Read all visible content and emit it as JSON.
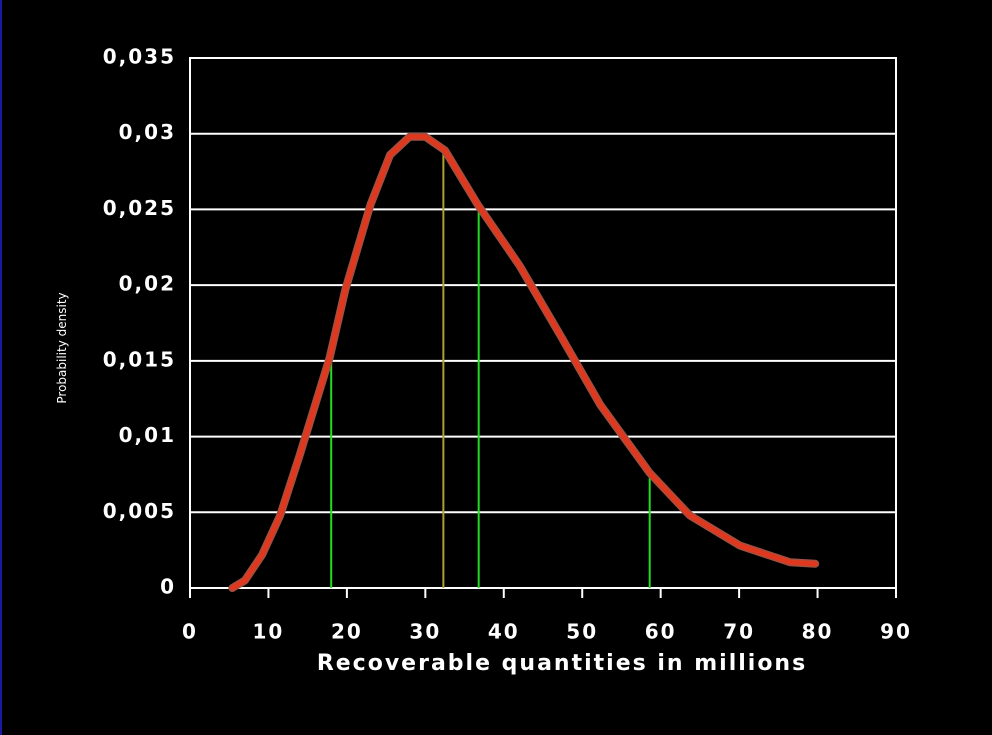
{
  "chart_data": {
    "type": "line",
    "x_label": "Recoverable quantities in millions",
    "y_label": "Probability density",
    "xlim": [
      0,
      90
    ],
    "xticks": [
      0,
      10,
      20,
      30,
      40,
      50,
      60,
      70,
      80,
      90
    ],
    "ylim": [
      0,
      0.035
    ],
    "yticks": [
      0,
      {
        "value": 0.005,
        "label": "0,005"
      },
      {
        "value": 0.01,
        "label": "0,01"
      },
      {
        "value": 0.015,
        "label": "0,015"
      },
      {
        "value": 0.02,
        "label": "0,02"
      },
      {
        "value": 0.025,
        "label": "0,025"
      },
      {
        "value": 0.03,
        "label": "0,03"
      },
      {
        "value": 0.035,
        "label": "0,035"
      }
    ],
    "grid": true,
    "series": [
      {
        "color": "#e0381e",
        "x": [
          5.4,
          7,
          9.2,
          11.5,
          14,
          17.8,
          19.8,
          23,
          25.5,
          28,
          30,
          32.5,
          36.7,
          42,
          47.2,
          52.3,
          58.6,
          63.7,
          70.1,
          76.5,
          79.7
        ],
        "values": [
          0,
          0.0005,
          0.0022,
          0.0048,
          0.0088,
          0.0152,
          0.0197,
          0.0253,
          0.0286,
          0.0298,
          0.0298,
          0.0289,
          0.0253,
          0.0213,
          0.0167,
          0.0121,
          0.0076,
          0.0048,
          0.0028,
          0.0017,
          0.0016
        ]
      }
    ],
    "reference_lines": [
      {
        "x": 18,
        "y": 0.015,
        "color": "#22dd22"
      },
      {
        "x": 32.3,
        "y": 0.029,
        "color": "#b0a030"
      },
      {
        "x": 36.8,
        "y": 0.0253,
        "color": "#22dd22"
      },
      {
        "x": 58.6,
        "y": 0.0076,
        "color": "#22dd22"
      }
    ]
  }
}
